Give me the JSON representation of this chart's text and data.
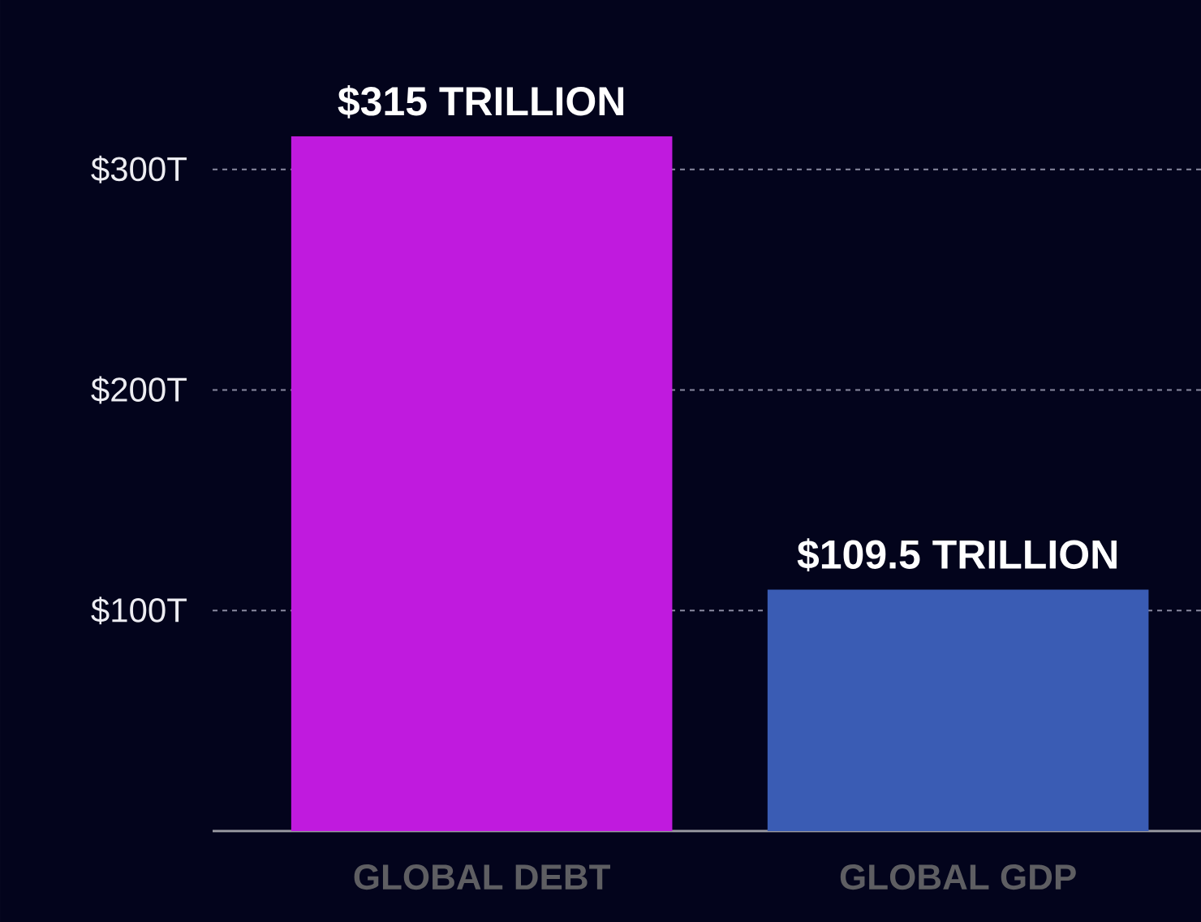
{
  "chart_data": {
    "type": "bar",
    "categories": [
      "GLOBAL DEBT",
      "GLOBAL GDP"
    ],
    "values": [
      315,
      109.5
    ],
    "colors": [
      "#c01ade",
      "#3a5cb4"
    ],
    "value_labels": [
      "$315 TRILLION",
      "$109.5 TRILLION"
    ],
    "ylim": [
      0,
      315
    ],
    "yticks": [
      {
        "value": 100,
        "label": "$100T"
      },
      {
        "value": 200,
        "label": "$200T"
      },
      {
        "value": 300,
        "label": "$300T"
      }
    ],
    "grid": "y"
  }
}
